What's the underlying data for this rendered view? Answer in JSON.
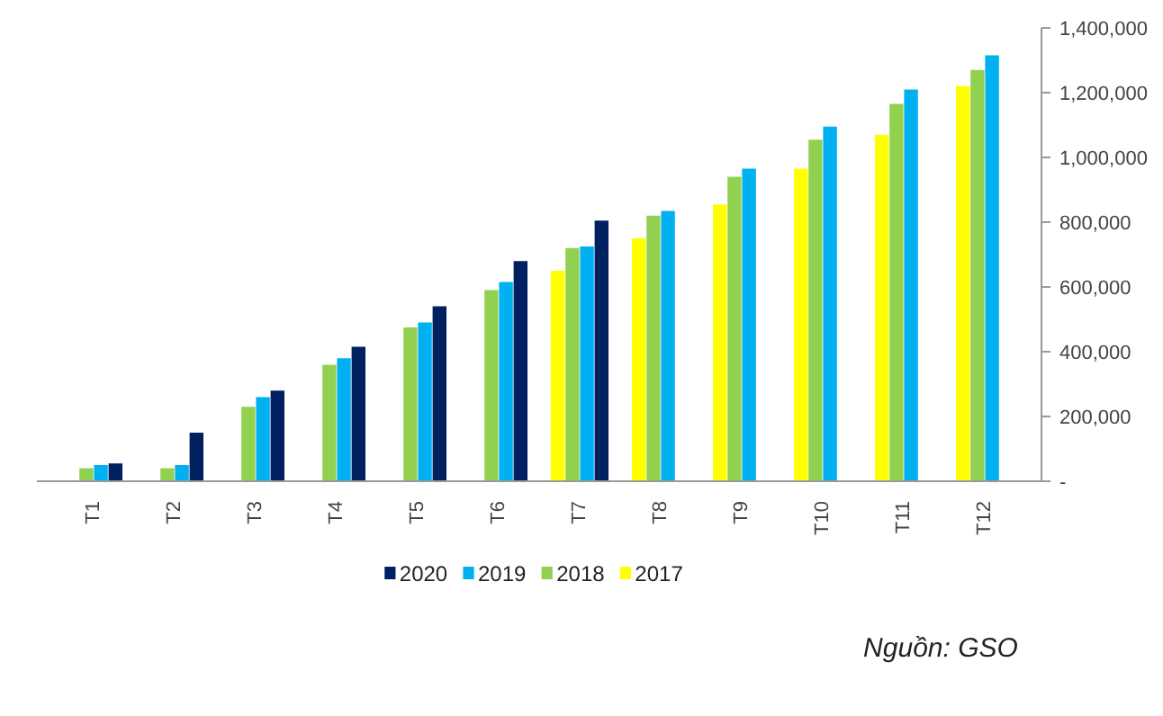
{
  "chart_data": {
    "type": "bar",
    "categories": [
      "T1",
      "T2",
      "T3",
      "T4",
      "T5",
      "T6",
      "T7",
      "T8",
      "T9",
      "T10",
      "T11",
      "T12"
    ],
    "series": [
      {
        "name": "2017",
        "color": "#ffff00",
        "values": [
          null,
          null,
          null,
          null,
          null,
          null,
          650000,
          750000,
          855000,
          965000,
          1070000,
          1220000
        ]
      },
      {
        "name": "2018",
        "color": "#92d050",
        "values": [
          40000,
          40000,
          230000,
          360000,
          475000,
          590000,
          720000,
          820000,
          940000,
          1055000,
          1165000,
          1270000
        ]
      },
      {
        "name": "2019",
        "color": "#00b0f0",
        "values": [
          50000,
          50000,
          260000,
          380000,
          490000,
          615000,
          725000,
          835000,
          965000,
          1095000,
          1210000,
          1315000
        ]
      },
      {
        "name": "2020",
        "color": "#002060",
        "values": [
          55000,
          150000,
          280000,
          415000,
          540000,
          680000,
          805000,
          null,
          null,
          null,
          null,
          null
        ]
      }
    ],
    "ylim": [
      0,
      1400000
    ],
    "yticks": [
      {
        "value": 0,
        "label": "-"
      },
      {
        "value": 200000,
        "label": "200,000"
      },
      {
        "value": 400000,
        "label": "400,000"
      },
      {
        "value": 600000,
        "label": "600,000"
      },
      {
        "value": 800000,
        "label": "800,000"
      },
      {
        "value": 1000000,
        "label": "1,000,000"
      },
      {
        "value": 1200000,
        "label": "1,200,000"
      },
      {
        "value": 1400000,
        "label": "1,400,000"
      }
    ],
    "grid": false,
    "legend": "bottom",
    "annotations": [
      "Nguồn: GSO"
    ]
  }
}
